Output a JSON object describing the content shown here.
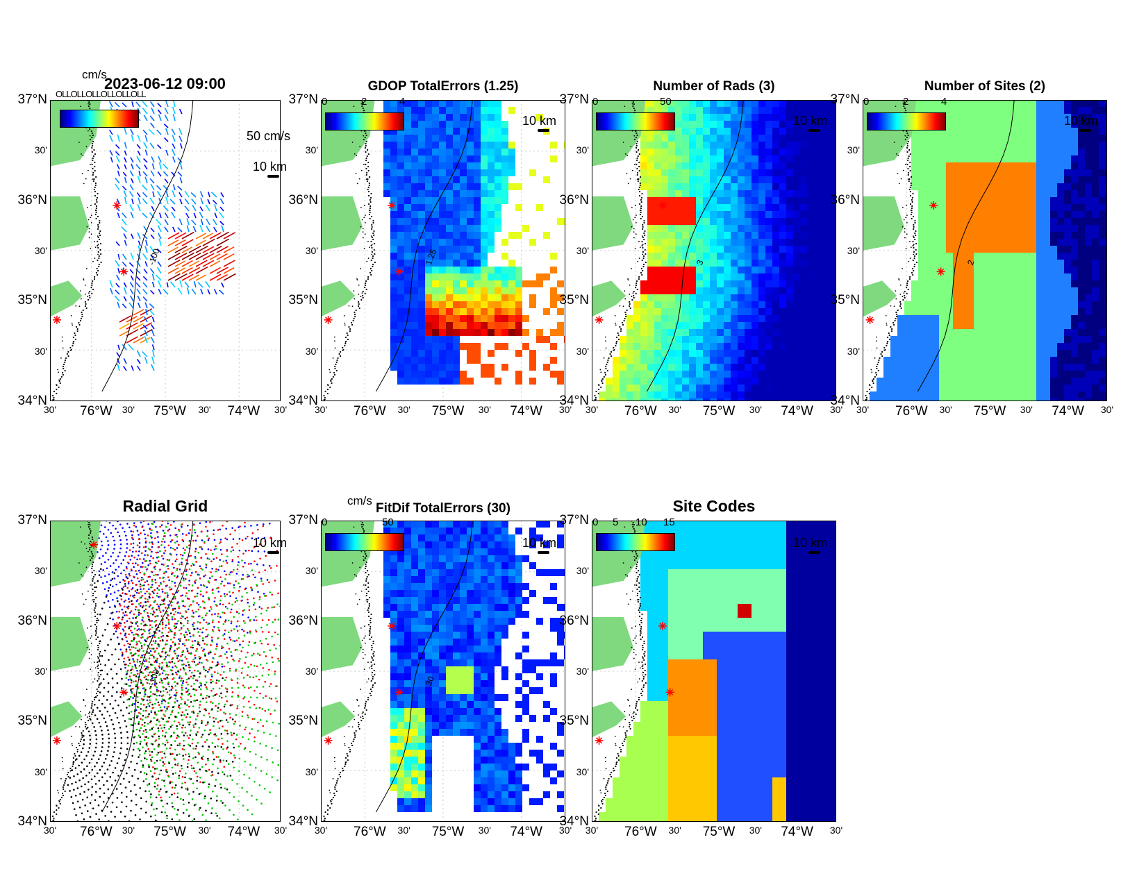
{
  "timestamp": "2023-06-12 09:00",
  "colors": {
    "land": "#80d97f",
    "coast_dots": "#000000",
    "site_marker": "#ff0000",
    "grid": "#c8c8c8"
  },
  "axes": {
    "y_major": [
      "37°N",
      "36°N",
      "35°N",
      "34°N"
    ],
    "y_minor": [
      "30'",
      "30'",
      "30'"
    ],
    "x_major": [
      "76°W",
      "75°W",
      "74°W"
    ],
    "x_minor": [
      "30'",
      "30'",
      "30'",
      "30'"
    ]
  },
  "panels": [
    {
      "id": "totals",
      "title": "",
      "cb_unit": "cm/s",
      "cb_ticks": [],
      "scale_label": "10 km",
      "vector_scale_label": "50 cm/s",
      "contour_label": "-100",
      "legend_overlap_text": "OLLOLLOLLOLLOLLOLL"
    },
    {
      "id": "gdop",
      "title": "GDOP TotalErrors (1.25)",
      "cb_unit": "",
      "cb_ticks": [
        "0",
        "2",
        "4"
      ],
      "scale_label": "10 km",
      "contour_label": "1.25"
    },
    {
      "id": "nrads",
      "title": "Number of Rads (3)",
      "cb_unit": "",
      "cb_ticks": [
        "0",
        "50"
      ],
      "scale_label": "10 km",
      "contour_label": "3"
    },
    {
      "id": "nsites",
      "title": "Number of Sites (2)",
      "cb_unit": "",
      "cb_ticks": [
        "0",
        "2",
        "4"
      ],
      "scale_label": "10 km",
      "contour_label": "2"
    },
    {
      "id": "radgrid",
      "title": "Radial Grid",
      "cb_unit": "",
      "cb_ticks": [],
      "scale_label": "10 km",
      "contour_label": "-100"
    },
    {
      "id": "fitdif",
      "title": "FitDif TotalErrors (30)",
      "cb_unit": "cm/s",
      "cb_ticks": [
        "0",
        "50"
      ],
      "scale_label": "10 km",
      "contour_label": "30"
    },
    {
      "id": "sitecodes",
      "title": "Site Codes",
      "cb_unit": "",
      "cb_ticks": [
        "0",
        "5",
        "10",
        "15"
      ],
      "scale_label": "10 km",
      "contour_label": ""
    }
  ]
}
